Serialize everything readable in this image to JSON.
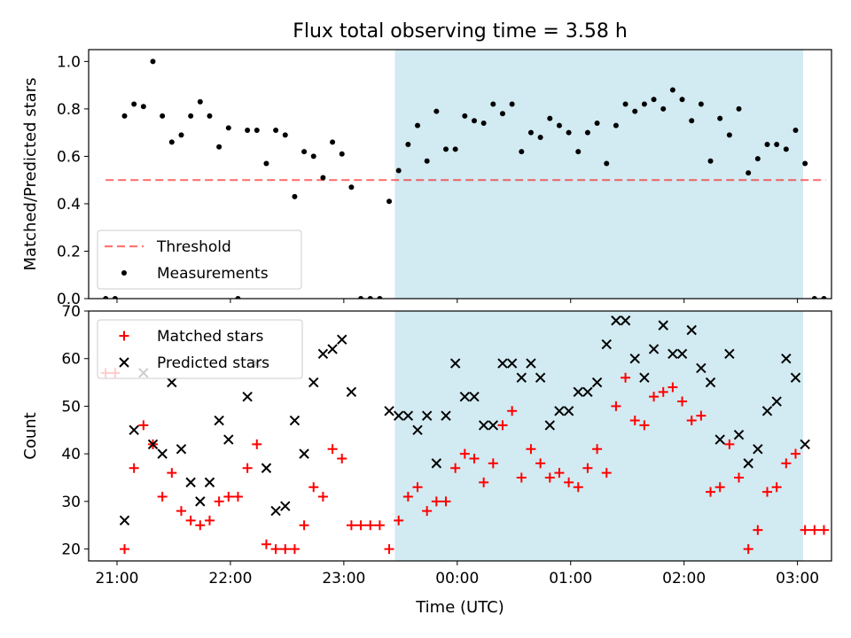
{
  "figure": {
    "title": "Flux total observing time = 3.58 h",
    "xlabel": "Time (UTC)",
    "colors": {
      "window": "#add8e6",
      "threshold": "#ff0000",
      "measurement": "#000000",
      "matched": "#ff0000",
      "predicted": "#000000"
    }
  },
  "chart_data": [
    {
      "type": "scatter",
      "ylabel": "Matched/Predicted stars",
      "ylim": [
        0,
        1.05
      ],
      "yticks": [
        "0.0",
        "0.2",
        "0.4",
        "0.6",
        "0.8",
        "1.0"
      ],
      "xlim": [
        "20:45",
        "03:18"
      ],
      "xticks": [
        "21:00",
        "22:00",
        "23:00",
        "00:00",
        "01:00",
        "02:00",
        "03:00"
      ],
      "observing_window": [
        "23:27",
        "03:03"
      ],
      "legend": {
        "placement": "lower-left",
        "entries": [
          "Threshold",
          "Measurements"
        ]
      },
      "series": [
        {
          "name": "Threshold",
          "style": "dashed-line",
          "x": [
            "20:54",
            "03:15"
          ],
          "y": [
            0.5,
            0.5
          ]
        },
        {
          "name": "Measurements",
          "style": "dot",
          "x": [
            "20:54",
            "20:59",
            "21:04",
            "21:09",
            "21:14",
            "21:19",
            "21:24",
            "21:29",
            "21:34",
            "21:39",
            "21:44",
            "21:49",
            "21:54",
            "21:59",
            "22:04",
            "22:09",
            "22:14",
            "22:19",
            "22:24",
            "22:29",
            "22:34",
            "22:39",
            "22:44",
            "22:49",
            "22:54",
            "22:59",
            "23:04",
            "23:09",
            "23:14",
            "23:19",
            "23:24",
            "23:29",
            "23:34",
            "23:39",
            "23:44",
            "23:49",
            "23:54",
            "23:59",
            "00:04",
            "00:09",
            "00:14",
            "00:19",
            "00:24",
            "00:29",
            "00:34",
            "00:39",
            "00:44",
            "00:49",
            "00:54",
            "00:59",
            "01:04",
            "01:09",
            "01:14",
            "01:19",
            "01:24",
            "01:29",
            "01:34",
            "01:39",
            "01:44",
            "01:49",
            "01:54",
            "01:59",
            "02:04",
            "02:09",
            "02:14",
            "02:19",
            "02:24",
            "02:29",
            "02:34",
            "02:39",
            "02:44",
            "02:49",
            "02:54",
            "02:59",
            "03:04",
            "03:09",
            "03:14"
          ],
          "y": [
            0.0,
            0.0,
            0.77,
            0.82,
            0.81,
            1.0,
            0.77,
            0.66,
            0.69,
            0.77,
            0.83,
            0.77,
            0.64,
            0.72,
            0.0,
            0.71,
            0.71,
            0.57,
            0.71,
            0.69,
            0.43,
            0.62,
            0.6,
            0.51,
            0.66,
            0.61,
            0.47,
            0.0,
            0.0,
            0.0,
            0.41,
            0.54,
            0.65,
            0.73,
            0.58,
            0.79,
            0.63,
            0.63,
            0.77,
            0.75,
            0.74,
            0.82,
            0.78,
            0.82,
            0.62,
            0.7,
            0.68,
            0.76,
            0.73,
            0.7,
            0.62,
            0.7,
            0.74,
            0.57,
            0.73,
            0.82,
            0.79,
            0.82,
            0.84,
            0.8,
            0.88,
            0.84,
            0.75,
            0.82,
            0.58,
            0.76,
            0.69,
            0.8,
            0.53,
            0.59,
            0.65,
            0.65,
            0.63,
            0.71,
            0.57,
            0.0,
            0.0
          ]
        }
      ]
    },
    {
      "type": "scatter",
      "ylabel": "Count",
      "ylim": [
        17.5,
        70
      ],
      "yticks": [
        "20",
        "30",
        "40",
        "50",
        "60",
        "70"
      ],
      "xlim": [
        "20:45",
        "03:18"
      ],
      "xticks": [
        "21:00",
        "22:00",
        "23:00",
        "00:00",
        "01:00",
        "02:00",
        "03:00"
      ],
      "observing_window": [
        "23:27",
        "03:03"
      ],
      "legend": {
        "placement": "upper-left",
        "entries": [
          "Matched stars",
          "Predicted stars"
        ]
      },
      "series": [
        {
          "name": "Matched stars",
          "marker": "plus",
          "x": [
            "20:54",
            "20:59",
            "21:04",
            "21:09",
            "21:14",
            "21:19",
            "21:24",
            "21:29",
            "21:34",
            "21:39",
            "21:44",
            "21:49",
            "21:54",
            "21:59",
            "22:04",
            "22:09",
            "22:14",
            "22:19",
            "22:24",
            "22:29",
            "22:34",
            "22:39",
            "22:44",
            "22:49",
            "22:54",
            "22:59",
            "23:04",
            "23:09",
            "23:14",
            "23:19",
            "23:24",
            "23:29",
            "23:34",
            "23:39",
            "23:44",
            "23:49",
            "23:54",
            "23:59",
            "00:04",
            "00:09",
            "00:14",
            "00:19",
            "00:24",
            "00:29",
            "00:34",
            "00:39",
            "00:44",
            "00:49",
            "00:54",
            "00:59",
            "01:04",
            "01:09",
            "01:14",
            "01:19",
            "01:24",
            "01:29",
            "01:34",
            "01:39",
            "01:44",
            "01:49",
            "01:54",
            "01:59",
            "02:04",
            "02:09",
            "02:14",
            "02:19",
            "02:24",
            "02:29",
            "02:34",
            "02:39",
            "02:44",
            "02:49",
            "02:54",
            "02:59",
            "03:04",
            "03:09",
            "03:14"
          ],
          "y": [
            57,
            57,
            20,
            37,
            46,
            42,
            31,
            36,
            28,
            26,
            25,
            26,
            30,
            31,
            31,
            37,
            42,
            21,
            20,
            20,
            20,
            25,
            33,
            31,
            41,
            39,
            25,
            25,
            25,
            25,
            20,
            26,
            31,
            33,
            28,
            30,
            30,
            37,
            40,
            39,
            34,
            38,
            46,
            49,
            35,
            41,
            38,
            35,
            36,
            34,
            33,
            37,
            41,
            36,
            50,
            56,
            47,
            46,
            52,
            53,
            54,
            51,
            47,
            48,
            32,
            33,
            42,
            35,
            20,
            24,
            32,
            33,
            38,
            40,
            24,
            24,
            24
          ]
        },
        {
          "name": "Predicted stars",
          "marker": "x",
          "x": [
            "21:04",
            "21:09",
            "21:14",
            "21:19",
            "21:24",
            "21:29",
            "21:34",
            "21:39",
            "21:44",
            "21:49",
            "21:54",
            "21:59",
            "22:09",
            "22:14",
            "22:19",
            "22:24",
            "22:29",
            "22:34",
            "22:39",
            "22:44",
            "22:49",
            "22:54",
            "22:59",
            "23:04",
            "23:24",
            "23:29",
            "23:34",
            "23:39",
            "23:44",
            "23:49",
            "23:54",
            "23:59",
            "00:04",
            "00:09",
            "00:14",
            "00:19",
            "00:24",
            "00:29",
            "00:34",
            "00:39",
            "00:44",
            "00:49",
            "00:54",
            "00:59",
            "01:04",
            "01:09",
            "01:14",
            "01:19",
            "01:24",
            "01:29",
            "01:34",
            "01:39",
            "01:44",
            "01:49",
            "01:54",
            "01:59",
            "02:04",
            "02:09",
            "02:14",
            "02:19",
            "02:24",
            "02:29",
            "02:34",
            "02:39",
            "02:44",
            "02:49",
            "02:54",
            "02:59",
            "03:04"
          ],
          "y": [
            26,
            45,
            57,
            42,
            40,
            55,
            41,
            34,
            30,
            34,
            47,
            43,
            52,
            59,
            37,
            28,
            29,
            47,
            40,
            55,
            61,
            62,
            64,
            53,
            49,
            48,
            48,
            45,
            48,
            38,
            48,
            59,
            52,
            52,
            46,
            46,
            59,
            59,
            56,
            59,
            56,
            46,
            49,
            49,
            53,
            53,
            55,
            63,
            68,
            68,
            60,
            56,
            62,
            67,
            61,
            61,
            66,
            58,
            55,
            43,
            61,
            44,
            38,
            41,
            49,
            51,
            60,
            56,
            42
          ]
        }
      ]
    }
  ]
}
